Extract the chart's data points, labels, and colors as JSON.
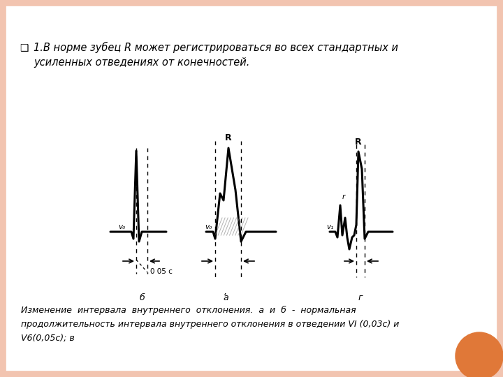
{
  "background_color": "#FFFFFF",
  "border_color": "#F2C4B0",
  "bullet_char": "□",
  "bullet_text_line1": "1.В норме зубец R может регистрироваться во всех стандартных и",
  "bullet_text_line2": "усиленных отведениях от конечностей.",
  "bottom_text_line1": "Изменение  интервала  внутреннего  отклонения.  а  и  б  -  нормальная",
  "bottom_text_line2": "продолжительность интервала внутреннего отклонения в отведении VI (0,03с) и",
  "bottom_text_line3": "V6(0,05с); в",
  "orange_circle_color": "#E07838"
}
